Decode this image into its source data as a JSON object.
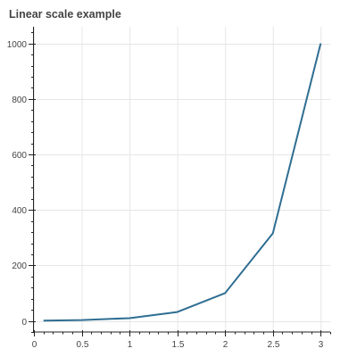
{
  "chart_data": {
    "type": "line",
    "title": "Linear scale example",
    "xlabel": "",
    "ylabel": "",
    "x": [
      0.1,
      0.5,
      1.0,
      1.5,
      2.0,
      2.5,
      3.0
    ],
    "series": [
      {
        "values": [
          1,
          3,
          10,
          32,
          100,
          316,
          1000
        ]
      }
    ],
    "xlim": [
      0,
      3.1
    ],
    "ylim": [
      -40,
      1060
    ],
    "x_ticks": [
      0,
      0.5,
      1,
      1.5,
      2,
      2.5,
      3
    ],
    "x_tick_labels": [
      "0",
      "0.5",
      "1",
      "1.5",
      "2",
      "2.5",
      "3"
    ],
    "x_minor_step": 0.1,
    "y_ticks": [
      0,
      200,
      400,
      600,
      800,
      1000
    ],
    "y_tick_labels": [
      "0",
      "200",
      "400",
      "600",
      "800",
      "1000"
    ],
    "y_minor_step": 40,
    "grid": true,
    "colors": {
      "line": "#2f6e92",
      "grid": "#e6e6e6",
      "axis": "#222222",
      "text": "#444444"
    }
  }
}
